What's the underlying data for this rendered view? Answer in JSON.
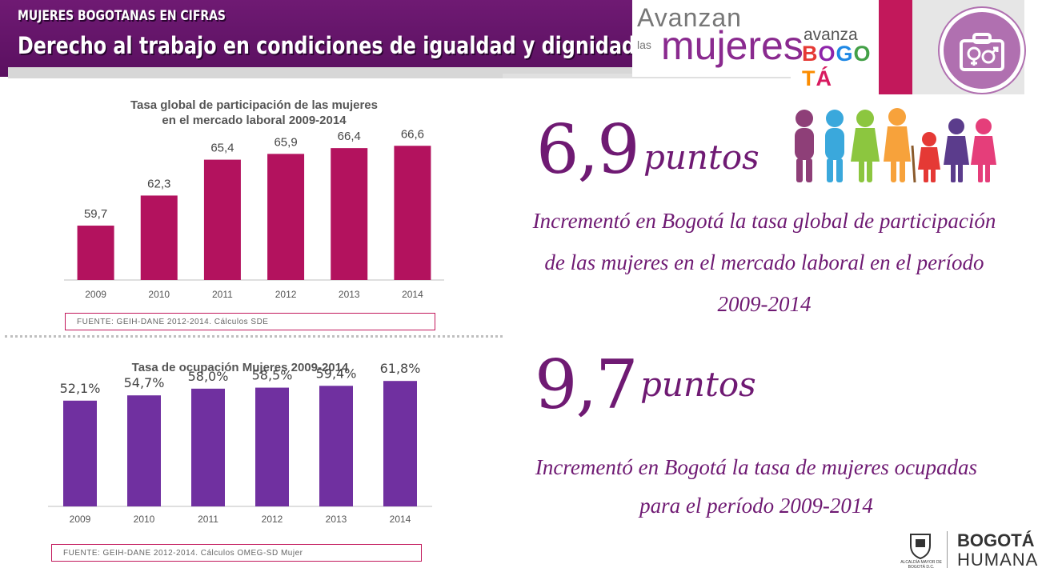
{
  "header": {
    "kicker": "MUJERES BOGOTANAS EN CIFRAS",
    "title": "Derecho al trabajo en condiciones de igualdad y dignidad"
  },
  "logo": {
    "line1": "Avanzan",
    "las": "las",
    "mujeres": "mujeres",
    "avanza": "avanza",
    "bogota": "BOGOTÁ",
    "bogota_letter_colors": [
      "#e53935",
      "#8e24aa",
      "#1e88e5",
      "#43a047",
      "#fb8c00",
      "#d81b60"
    ]
  },
  "colors": {
    "purple": "#6f1a73",
    "magenta_bar": "#b3125e",
    "violet_bar": "#7030a0",
    "accent": "#c2185b"
  },
  "icons": {
    "gender": "gender-symbols-icon",
    "people": "people-group-icon",
    "shield": "coat-of-arms-icon"
  },
  "stats": [
    {
      "number": "6,9",
      "unit": "puntos",
      "description": "Incrementó en Bogotá la tasa global de participación de las mujeres en el mercado laboral en el período 2009-2014"
    },
    {
      "number": "9,7",
      "unit": "puntos",
      "description": "Incrementó en Bogotá la tasa de mujeres ocupadas para el período 2009-2014"
    }
  ],
  "footer": {
    "bogota": "BOGOTÁ",
    "humana": "HUMANA",
    "alcaldia": "ALCALDÍA MAYOR DE BOGOTÁ D.C."
  },
  "chart_data": [
    {
      "type": "bar",
      "title": "Tasa global de participación de las mujeres en el mercado laboral 2009-2014",
      "title_lines": [
        "Tasa global de participación de las mujeres",
        "en el mercado laboral 2009-2014"
      ],
      "categories": [
        "2009",
        "2010",
        "2011",
        "2012",
        "2013",
        "2014"
      ],
      "values": [
        59.7,
        62.3,
        65.4,
        65.9,
        66.4,
        66.6
      ],
      "labels": [
        "59,7",
        "62,3",
        "65,4",
        "65,9",
        "66,4",
        "66,6"
      ],
      "ylim": [
        55,
        68
      ],
      "grid": false,
      "color": "#b3125e",
      "source": "FUENTE: GEIH-DANE 2012-2014. Cálculos SDE"
    },
    {
      "type": "bar",
      "title": "Tasa de ocupación Mujeres 2009-2014",
      "title_lines": [
        "Tasa de ocupación Mujeres 2009-2014"
      ],
      "categories": [
        "2009",
        "2010",
        "2011",
        "2012",
        "2013",
        "2014"
      ],
      "values": [
        52.1,
        54.7,
        58.0,
        58.5,
        59.4,
        61.8
      ],
      "labels": [
        "52,1%",
        "54,7%",
        "58,0%",
        "58,5%",
        "59,4%",
        "61,8%"
      ],
      "ylim": [
        0,
        67
      ],
      "grid": false,
      "color": "#7030a0",
      "source": "FUENTE: GEIH-DANE 2012-2014. Cálculos OMEG-SD Mujer"
    }
  ]
}
